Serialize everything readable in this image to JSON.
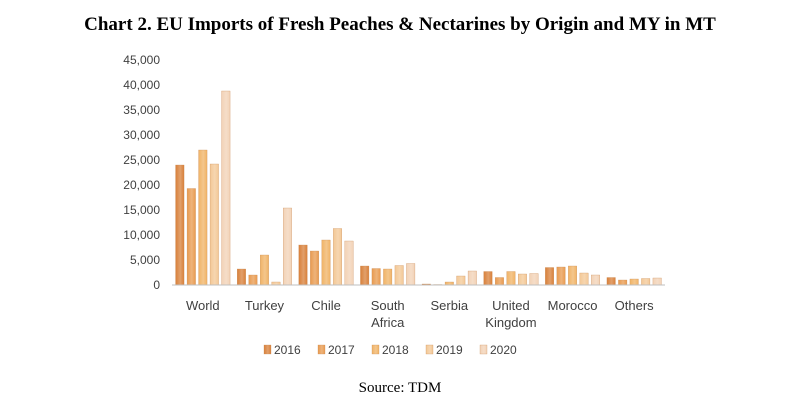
{
  "title": "Chart 2. EU Imports of Fresh Peaches & Nectarines by Origin and MY in MT",
  "source": "Source: TDM",
  "chart_data": {
    "type": "bar",
    "title": "Chart 2. EU Imports of Fresh Peaches & Nectarines by Origin and MY in MT",
    "xlabel": "",
    "ylabel": "",
    "ylim": [
      0,
      45000
    ],
    "yticks": [
      0,
      5000,
      10000,
      15000,
      20000,
      25000,
      30000,
      35000,
      40000,
      45000
    ],
    "ytick_labels": [
      "0",
      "5,000",
      "10,000",
      "15,000",
      "20,000",
      "25,000",
      "30,000",
      "35,000",
      "40,000",
      "45,000"
    ],
    "categories": [
      [
        "World"
      ],
      [
        "Turkey"
      ],
      [
        "Chile"
      ],
      [
        "South",
        "Africa"
      ],
      [
        "Serbia"
      ],
      [
        "United",
        "Kingdom"
      ],
      [
        "Morocco"
      ],
      [
        "Others"
      ]
    ],
    "series": [
      {
        "name": "2016",
        "color": "#d8803a",
        "values": [
          24000,
          3200,
          8000,
          3800,
          200,
          2700,
          3500,
          1500
        ]
      },
      {
        "name": "2017",
        "color": "#e89a4f",
        "values": [
          19300,
          2000,
          6800,
          3300,
          100,
          1500,
          3600,
          1000
        ]
      },
      {
        "name": "2018",
        "color": "#f0b366",
        "values": [
          27000,
          6000,
          9000,
          3200,
          600,
          2700,
          3800,
          1200
        ]
      },
      {
        "name": "2019",
        "color": "#f3c896",
        "values": [
          24200,
          600,
          11300,
          3900,
          1800,
          2200,
          2400,
          1300
        ]
      },
      {
        "name": "2020",
        "color": "#f2d2b6",
        "values": [
          38800,
          15400,
          8800,
          4300,
          2800,
          2300,
          2000,
          1400
        ]
      }
    ],
    "legend_position": "bottom",
    "grid": false
  }
}
